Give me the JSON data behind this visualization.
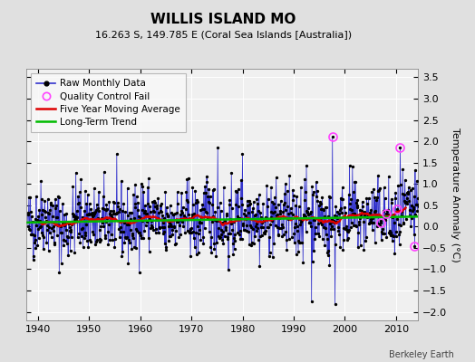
{
  "title": "WILLIS ISLAND MO",
  "subtitle": "16.263 S, 149.785 E (Coral Sea Islands [Australia])",
  "ylabel": "Temperature Anomaly (°C)",
  "credit": "Berkeley Earth",
  "year_start": 1938,
  "year_end": 2014,
  "ylim": [
    -2.2,
    3.7
  ],
  "yticks": [
    -2,
    -1.5,
    -1,
    -0.5,
    0,
    0.5,
    1,
    1.5,
    2,
    2.5,
    3,
    3.5
  ],
  "xticks": [
    1940,
    1950,
    1960,
    1970,
    1980,
    1990,
    2000,
    2010
  ],
  "fig_bg_color": "#e0e0e0",
  "plot_bg_color": "#f0f0f0",
  "raw_line_color": "#3333cc",
  "raw_dot_color": "#000000",
  "ma_color": "#dd0000",
  "trend_color": "#00bb00",
  "qc_color": "#ff44ff",
  "grid_color": "#ffffff",
  "seed": 42,
  "title_fontsize": 11,
  "subtitle_fontsize": 8,
  "tick_fontsize": 8,
  "ylabel_fontsize": 8,
  "legend_fontsize": 7.5,
  "credit_fontsize": 7
}
